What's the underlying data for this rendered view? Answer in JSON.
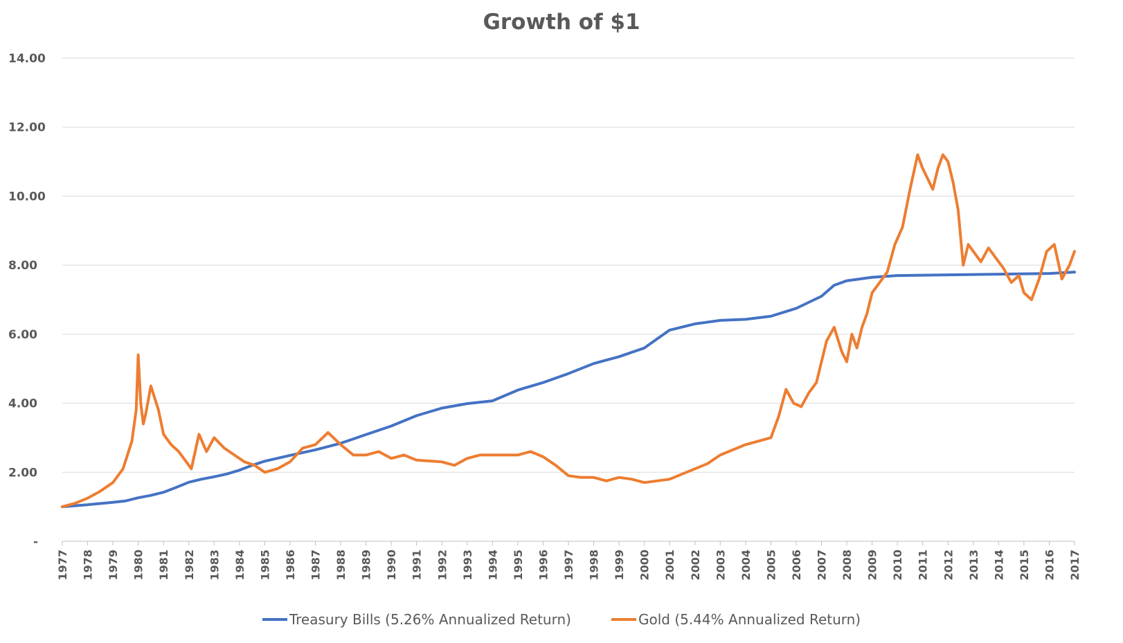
{
  "chart_data": {
    "type": "line",
    "title": "Growth of $1",
    "xlabel": "",
    "ylabel": "",
    "ylim": [
      0,
      14
    ],
    "xlim": [
      1977,
      2017
    ],
    "y_ticks": [
      "-",
      "2.00",
      "4.00",
      "6.00",
      "8.00",
      "10.00",
      "12.00",
      "14.00"
    ],
    "x_ticks": [
      "1977",
      "1978",
      "1979",
      "1980",
      "1981",
      "1982",
      "1983",
      "1984",
      "1985",
      "1986",
      "1987",
      "1988",
      "1989",
      "1990",
      "1991",
      "1992",
      "1993",
      "1994",
      "1995",
      "1996",
      "1997",
      "1998",
      "1999",
      "2000",
      "2001",
      "2002",
      "2003",
      "2004",
      "2005",
      "2006",
      "2007",
      "2008",
      "2009",
      "2010",
      "2011",
      "2012",
      "2013",
      "2014",
      "2015",
      "2016",
      "2017"
    ],
    "grid": "horizontal",
    "legend_position": "bottom",
    "series": [
      {
        "name": "Treasury Bills (5.26% Annualized Return)",
        "color": "#4472C4",
        "x": [
          1977,
          1978,
          1979,
          1979.5,
          1980,
          1980.5,
          1981,
          1981.5,
          1982,
          1982.5,
          1983,
          1983.5,
          1984,
          1984.5,
          1985,
          1986,
          1987,
          1988,
          1989,
          1990,
          1991,
          1992,
          1993,
          1994,
          1995,
          1996,
          1997,
          1998,
          1999,
          2000,
          2000.5,
          2001,
          2002,
          2003,
          2004,
          2005,
          2006,
          2007,
          2007.5,
          2008,
          2009,
          2010,
          2011,
          2012,
          2013,
          2014,
          2015,
          2016,
          2017
        ],
        "values": [
          1.0,
          1.06,
          1.13,
          1.17,
          1.26,
          1.33,
          1.42,
          1.56,
          1.71,
          1.8,
          1.87,
          1.95,
          2.06,
          2.2,
          2.32,
          2.49,
          2.65,
          2.84,
          3.09,
          3.34,
          3.64,
          3.86,
          3.99,
          4.07,
          4.38,
          4.6,
          4.86,
          5.15,
          5.35,
          5.6,
          5.86,
          6.12,
          6.3,
          6.4,
          6.43,
          6.52,
          6.75,
          7.1,
          7.42,
          7.55,
          7.65,
          7.7,
          7.71,
          7.72,
          7.73,
          7.74,
          7.75,
          7.76,
          7.8
        ]
      },
      {
        "name": "Gold (5.44% Annualized Return)",
        "color": "#ED7D31",
        "x": [
          1977,
          1977.5,
          1978,
          1978.5,
          1979,
          1979.4,
          1979.75,
          1979.92,
          1980.0,
          1980.1,
          1980.2,
          1980.3,
          1980.5,
          1980.8,
          1981,
          1981.3,
          1981.6,
          1981.9,
          1982.1,
          1982.4,
          1982.7,
          1983.0,
          1983.4,
          1983.8,
          1984.2,
          1984.6,
          1985.0,
          1985.5,
          1986.0,
          1986.5,
          1987.0,
          1987.5,
          1988.0,
          1988.5,
          1989.0,
          1989.5,
          1990.0,
          1990.5,
          1991,
          1992,
          1992.5,
          1993,
          1993.5,
          1994,
          1995,
          1995.5,
          1996,
          1996.5,
          1997,
          1997.5,
          1998,
          1998.5,
          1999,
          1999.5,
          2000,
          2000.5,
          2001,
          2001.5,
          2002,
          2002.5,
          2003,
          2003.5,
          2004,
          2004.5,
          2005,
          2005.3,
          2005.6,
          2005.9,
          2006.2,
          2006.5,
          2006.8,
          2007.2,
          2007.5,
          2007.8,
          2008.0,
          2008.2,
          2008.4,
          2008.6,
          2008.8,
          2009.0,
          2009.3,
          2009.6,
          2009.9,
          2010.2,
          2010.5,
          2010.8,
          2011.0,
          2011.2,
          2011.4,
          2011.6,
          2011.8,
          2012.0,
          2012.2,
          2012.4,
          2012.6,
          2012.8,
          2013.0,
          2013.3,
          2013.6,
          2013.9,
          2014.2,
          2014.5,
          2014.8,
          2015.0,
          2015.3,
          2015.6,
          2015.9,
          2016.2,
          2016.5,
          2016.8,
          2017.0
        ],
        "values": [
          1.0,
          1.1,
          1.25,
          1.45,
          1.7,
          2.1,
          2.9,
          3.8,
          5.4,
          4.0,
          3.4,
          3.7,
          4.5,
          3.8,
          3.1,
          2.8,
          2.6,
          2.3,
          2.1,
          3.1,
          2.6,
          3.0,
          2.7,
          2.5,
          2.3,
          2.2,
          2.0,
          2.1,
          2.3,
          2.7,
          2.8,
          3.15,
          2.8,
          2.5,
          2.5,
          2.6,
          2.4,
          2.5,
          2.35,
          2.3,
          2.2,
          2.4,
          2.5,
          2.5,
          2.5,
          2.6,
          2.45,
          2.2,
          1.9,
          1.85,
          1.85,
          1.75,
          1.85,
          1.8,
          1.7,
          1.75,
          1.8,
          1.95,
          2.1,
          2.25,
          2.5,
          2.65,
          2.8,
          2.9,
          3.0,
          3.6,
          4.4,
          4.0,
          3.9,
          4.3,
          4.6,
          5.8,
          6.2,
          5.5,
          5.2,
          6.0,
          5.6,
          6.2,
          6.6,
          7.2,
          7.5,
          7.8,
          8.6,
          9.1,
          10.2,
          11.2,
          10.8,
          10.5,
          10.2,
          10.8,
          11.2,
          11.0,
          10.4,
          9.6,
          8.0,
          8.6,
          8.4,
          8.1,
          8.5,
          8.2,
          7.9,
          7.5,
          7.7,
          7.2,
          7.0,
          7.6,
          8.4,
          8.6,
          7.6,
          8.0,
          8.4
        ]
      }
    ]
  },
  "legend": {
    "items": [
      {
        "label": "Treasury Bills (5.26% Annualized Return)",
        "color": "#4472C4"
      },
      {
        "label": "Gold (5.44% Annualized Return)",
        "color": "#ED7D31"
      }
    ]
  }
}
